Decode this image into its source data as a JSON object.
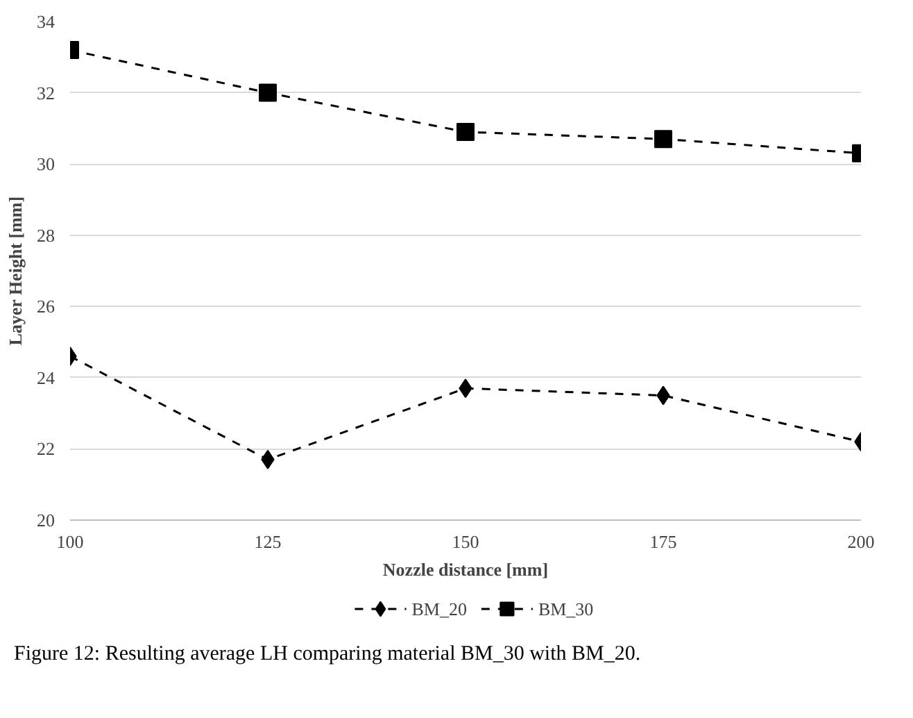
{
  "chart_data": {
    "type": "line",
    "xlabel": "Nozzle distance [mm]",
    "ylabel": "Layer Height [mm]",
    "x": [
      100,
      125,
      150,
      175,
      200
    ],
    "series": [
      {
        "name": "BM_20",
        "color": "#000000",
        "marker": "diamond",
        "values": [
          24.6,
          21.7,
          23.7,
          23.5,
          22.2
        ]
      },
      {
        "name": "BM_30",
        "color": "#000000",
        "marker": "square",
        "values": [
          33.2,
          32.0,
          30.9,
          30.7,
          30.3
        ]
      }
    ],
    "xlim": [
      100,
      200
    ],
    "xticks": [
      100,
      125,
      150,
      175,
      200
    ],
    "ylim": [
      20,
      34
    ],
    "yticks": [
      20,
      22,
      24,
      26,
      28,
      30,
      32,
      34
    ],
    "grid": "y",
    "legend": "bottom",
    "line_style": "dashed",
    "annotations": [
      "Figure 12: Resulting average LH comparing material BM_30 with BM_20."
    ]
  }
}
